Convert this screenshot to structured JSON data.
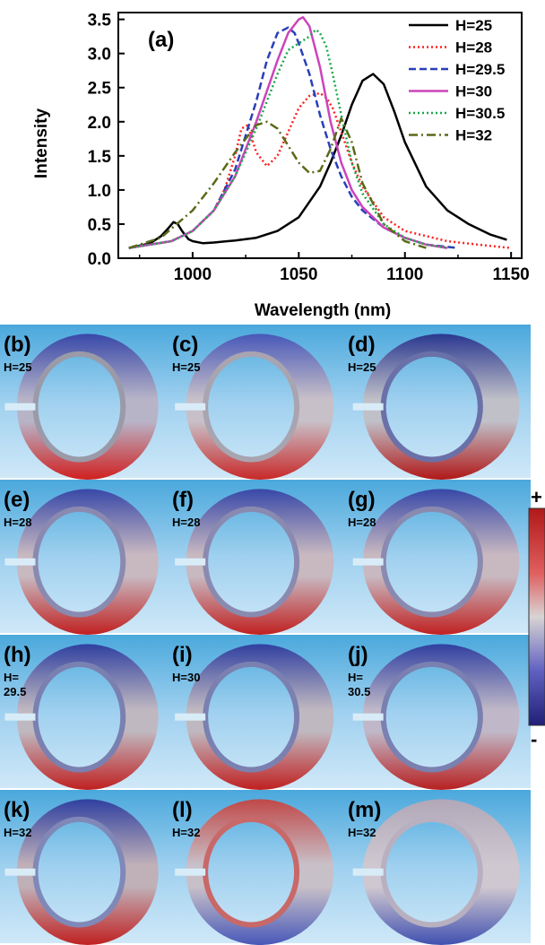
{
  "chart_data": {
    "type": "line",
    "panel_label": "(a)",
    "xlabel": "Wavelength (nm)",
    "ylabel": "Intensity",
    "xlim": [
      965,
      1155
    ],
    "ylim": [
      0.0,
      3.6
    ],
    "xticks": [
      "1000",
      "1050",
      "1100",
      "1150"
    ],
    "yticks": [
      "0.0",
      "0.5",
      "1.0",
      "1.5",
      "2.0",
      "2.5",
      "3.0",
      "3.5"
    ],
    "legend_position": "top-right",
    "series": [
      {
        "name": "H=25",
        "color": "#000000",
        "dash": "solid",
        "x": [
          970,
          980,
          985,
          988,
          991,
          993,
          995,
          998,
          1000,
          1005,
          1010,
          1020,
          1030,
          1040,
          1050,
          1060,
          1065,
          1070,
          1075,
          1080,
          1085,
          1090,
          1095,
          1100,
          1110,
          1120,
          1130,
          1140,
          1148
        ],
        "y": [
          0.15,
          0.22,
          0.32,
          0.42,
          0.53,
          0.5,
          0.4,
          0.28,
          0.25,
          0.22,
          0.23,
          0.26,
          0.3,
          0.4,
          0.6,
          1.05,
          1.4,
          1.8,
          2.25,
          2.6,
          2.7,
          2.55,
          2.15,
          1.7,
          1.05,
          0.7,
          0.5,
          0.35,
          0.27
        ]
      },
      {
        "name": "H=28",
        "color": "#ff2020",
        "dash": "dot",
        "x": [
          970,
          990,
          1000,
          1010,
          1015,
          1020,
          1023,
          1026,
          1030,
          1035,
          1040,
          1045,
          1050,
          1055,
          1060,
          1063,
          1066,
          1070,
          1075,
          1080,
          1090,
          1100,
          1120,
          1140,
          1150
        ],
        "y": [
          0.15,
          0.25,
          0.4,
          0.7,
          1.0,
          1.5,
          1.9,
          1.95,
          1.55,
          1.35,
          1.5,
          1.85,
          2.2,
          2.38,
          2.42,
          2.35,
          2.2,
          1.85,
          1.4,
          1.05,
          0.6,
          0.4,
          0.25,
          0.18,
          0.15
        ]
      },
      {
        "name": "H=29.5",
        "color": "#2a3fb8",
        "dash": "dash",
        "x": [
          970,
          990,
          1000,
          1010,
          1020,
          1030,
          1035,
          1040,
          1045,
          1048,
          1050,
          1055,
          1060,
          1065,
          1070,
          1075,
          1080,
          1090,
          1100,
          1110,
          1125
        ],
        "y": [
          0.15,
          0.25,
          0.4,
          0.7,
          1.3,
          2.3,
          2.9,
          3.3,
          3.38,
          3.3,
          3.15,
          2.7,
          2.1,
          1.6,
          1.2,
          0.9,
          0.7,
          0.45,
          0.3,
          0.2,
          0.15
        ]
      },
      {
        "name": "H=30",
        "color": "#cc44bb",
        "dash": "solid",
        "x": [
          970,
          990,
          1000,
          1010,
          1020,
          1030,
          1040,
          1045,
          1050,
          1052,
          1055,
          1060,
          1065,
          1070,
          1075,
          1080,
          1090,
          1100,
          1110,
          1120
        ],
        "y": [
          0.15,
          0.25,
          0.4,
          0.7,
          1.2,
          2.0,
          2.9,
          3.3,
          3.5,
          3.53,
          3.4,
          2.8,
          2.0,
          1.4,
          1.0,
          0.75,
          0.45,
          0.3,
          0.2,
          0.15
        ]
      },
      {
        "name": "H=30.5",
        "color": "#1aa84a",
        "dash": "dot",
        "x": [
          970,
          990,
          1000,
          1010,
          1020,
          1030,
          1040,
          1045,
          1050,
          1055,
          1058,
          1060,
          1063,
          1066,
          1070,
          1075,
          1080,
          1090,
          1100,
          1110,
          1120
        ],
        "y": [
          0.15,
          0.25,
          0.4,
          0.7,
          1.2,
          1.9,
          2.7,
          3.05,
          3.15,
          3.25,
          3.35,
          3.3,
          3.1,
          2.7,
          2.1,
          1.4,
          0.95,
          0.5,
          0.3,
          0.2,
          0.15
        ]
      },
      {
        "name": "H=32",
        "color": "#5a6a18",
        "dash": "dashdot",
        "x": [
          970,
          985,
          1000,
          1010,
          1020,
          1030,
          1035,
          1040,
          1045,
          1050,
          1055,
          1060,
          1065,
          1070,
          1075,
          1080,
          1090,
          1100,
          1110
        ],
        "y": [
          0.15,
          0.3,
          0.7,
          1.1,
          1.55,
          1.95,
          2.0,
          1.9,
          1.65,
          1.4,
          1.25,
          1.28,
          1.6,
          2.05,
          1.7,
          1.1,
          0.5,
          0.25,
          0.15
        ]
      }
    ]
  },
  "map_panels": [
    {
      "letter": "(b)",
      "label": "H=25",
      "variant": "b"
    },
    {
      "letter": "(c)",
      "label": "H=25",
      "variant": "c"
    },
    {
      "letter": "(d)",
      "label": "H=25",
      "variant": "d"
    },
    {
      "letter": "(e)",
      "label": "H=28",
      "variant": "e"
    },
    {
      "letter": "(f)",
      "label": "H=28",
      "variant": "f"
    },
    {
      "letter": "(g)",
      "label": "H=28",
      "variant": "g"
    },
    {
      "letter": "(h)",
      "label": "H=\n29.5",
      "variant": "h"
    },
    {
      "letter": "(i)",
      "label": "H=30",
      "variant": "i"
    },
    {
      "letter": "(j)",
      "label": "H=\n30.5",
      "variant": "j"
    },
    {
      "letter": "(k)",
      "label": "H=32",
      "variant": "k"
    },
    {
      "letter": "(l)",
      "label": "H=32",
      "variant": "l"
    },
    {
      "letter": "(m)",
      "label": "H=32",
      "variant": "m"
    }
  ],
  "colorbar": {
    "top_label": "+",
    "bottom_label": "-"
  }
}
